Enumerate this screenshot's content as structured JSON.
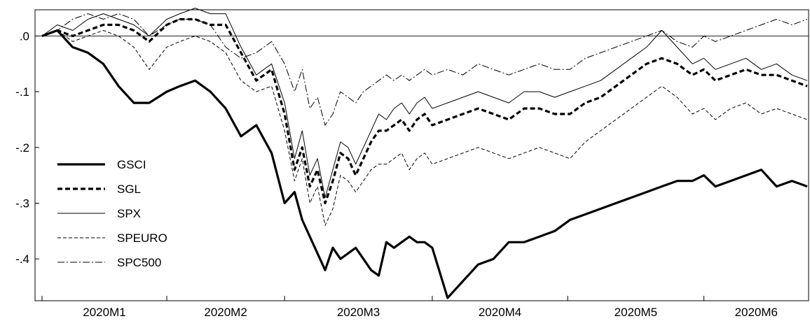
{
  "chart_data": {
    "type": "line",
    "title": "",
    "xlabel": "",
    "ylabel": "",
    "ylim": [
      -0.475,
      0.047
    ],
    "yticks": [
      {
        "value": 0.0,
        "label": ".0"
      },
      {
        "value": -0.1,
        "label": "-.1"
      },
      {
        "value": -0.2,
        "label": "-.2"
      },
      {
        "value": -0.3,
        "label": "-.3"
      },
      {
        "value": -0.4,
        "label": "-.4"
      }
    ],
    "xlim": [
      0,
      1
    ],
    "xticks": [
      {
        "value": 0.0,
        "label": "2020M1"
      },
      {
        "value": 0.163,
        "label": "2020M2"
      },
      {
        "value": 0.317,
        "label": "2020M3"
      },
      {
        "value": 0.51,
        "label": "2020M4"
      },
      {
        "value": 0.687,
        "label": "2020M5"
      },
      {
        "value": 0.865,
        "label": "2020M6"
      }
    ],
    "zero_line": true,
    "grid": false,
    "legend": "left-inside",
    "x": [
      0.0,
      0.02,
      0.04,
      0.06,
      0.08,
      0.1,
      0.12,
      0.14,
      0.163,
      0.18,
      0.2,
      0.22,
      0.24,
      0.26,
      0.28,
      0.3,
      0.317,
      0.33,
      0.34,
      0.35,
      0.36,
      0.37,
      0.38,
      0.39,
      0.4,
      0.41,
      0.42,
      0.43,
      0.44,
      0.45,
      0.46,
      0.47,
      0.48,
      0.49,
      0.5,
      0.51,
      0.53,
      0.55,
      0.57,
      0.59,
      0.61,
      0.63,
      0.65,
      0.67,
      0.69,
      0.71,
      0.73,
      0.75,
      0.77,
      0.79,
      0.81,
      0.83,
      0.85,
      0.865,
      0.88,
      0.9,
      0.92,
      0.94,
      0.96,
      0.98,
      1.0
    ],
    "series": [
      {
        "name": "GSCI",
        "values": [
          0.0,
          0.01,
          -0.02,
          -0.03,
          -0.05,
          -0.09,
          -0.12,
          -0.12,
          -0.1,
          -0.09,
          -0.08,
          -0.1,
          -0.13,
          -0.18,
          -0.16,
          -0.21,
          -0.3,
          -0.28,
          -0.33,
          -0.36,
          -0.39,
          -0.42,
          -0.38,
          -0.4,
          -0.39,
          -0.38,
          -0.4,
          -0.42,
          -0.43,
          -0.37,
          -0.38,
          -0.37,
          -0.36,
          -0.37,
          -0.37,
          -0.38,
          -0.47,
          -0.44,
          -0.41,
          -0.4,
          -0.37,
          -0.37,
          -0.36,
          -0.35,
          -0.33,
          -0.32,
          -0.31,
          -0.3,
          -0.29,
          -0.28,
          -0.27,
          -0.26,
          -0.26,
          -0.25,
          -0.27,
          -0.26,
          -0.25,
          -0.24,
          -0.27,
          -0.26,
          -0.27
        ]
      },
      {
        "name": "SGL",
        "values": [
          0.0,
          0.01,
          0.0,
          0.01,
          0.02,
          0.02,
          0.01,
          -0.01,
          0.02,
          0.03,
          0.03,
          0.02,
          0.02,
          -0.03,
          -0.08,
          -0.06,
          -0.14,
          -0.24,
          -0.2,
          -0.27,
          -0.24,
          -0.3,
          -0.26,
          -0.21,
          -0.22,
          -0.25,
          -0.22,
          -0.19,
          -0.17,
          -0.17,
          -0.16,
          -0.15,
          -0.17,
          -0.15,
          -0.14,
          -0.16,
          -0.15,
          -0.14,
          -0.13,
          -0.14,
          -0.15,
          -0.13,
          -0.13,
          -0.14,
          -0.14,
          -0.12,
          -0.11,
          -0.09,
          -0.07,
          -0.05,
          -0.04,
          -0.05,
          -0.07,
          -0.06,
          -0.08,
          -0.07,
          -0.06,
          -0.07,
          -0.07,
          -0.08,
          -0.09
        ]
      },
      {
        "name": "SPX",
        "values": [
          0.0,
          0.02,
          0.01,
          0.03,
          0.04,
          0.03,
          0.02,
          0.0,
          0.03,
          0.04,
          0.05,
          0.04,
          0.04,
          -0.02,
          -0.07,
          -0.05,
          -0.12,
          -0.22,
          -0.17,
          -0.25,
          -0.22,
          -0.29,
          -0.24,
          -0.19,
          -0.2,
          -0.23,
          -0.2,
          -0.17,
          -0.14,
          -0.15,
          -0.13,
          -0.12,
          -0.14,
          -0.12,
          -0.11,
          -0.13,
          -0.12,
          -0.11,
          -0.1,
          -0.11,
          -0.12,
          -0.1,
          -0.1,
          -0.11,
          -0.1,
          -0.09,
          -0.08,
          -0.06,
          -0.04,
          -0.02,
          0.01,
          -0.02,
          -0.05,
          -0.04,
          -0.06,
          -0.05,
          -0.04,
          -0.06,
          -0.05,
          -0.07,
          -0.08
        ]
      },
      {
        "name": "SPEURO",
        "values": [
          0.0,
          0.01,
          -0.01,
          0.0,
          0.01,
          0.0,
          -0.02,
          -0.06,
          -0.02,
          -0.01,
          0.0,
          -0.01,
          -0.03,
          -0.08,
          -0.1,
          -0.09,
          -0.17,
          -0.26,
          -0.22,
          -0.3,
          -0.27,
          -0.34,
          -0.31,
          -0.25,
          -0.26,
          -0.28,
          -0.26,
          -0.24,
          -0.23,
          -0.23,
          -0.22,
          -0.21,
          -0.24,
          -0.22,
          -0.21,
          -0.23,
          -0.22,
          -0.21,
          -0.2,
          -0.21,
          -0.22,
          -0.21,
          -0.2,
          -0.21,
          -0.22,
          -0.19,
          -0.17,
          -0.15,
          -0.13,
          -0.11,
          -0.09,
          -0.11,
          -0.14,
          -0.13,
          -0.15,
          -0.13,
          -0.12,
          -0.14,
          -0.13,
          -0.14,
          -0.15
        ]
      },
      {
        "name": "SPC500",
        "values": [
          0.0,
          0.01,
          0.03,
          0.04,
          0.03,
          0.04,
          0.03,
          0.0,
          0.02,
          0.03,
          0.03,
          0.02,
          -0.02,
          -0.04,
          -0.03,
          -0.01,
          -0.05,
          -0.1,
          -0.06,
          -0.13,
          -0.11,
          -0.16,
          -0.14,
          -0.1,
          -0.11,
          -0.12,
          -0.1,
          -0.09,
          -0.08,
          -0.07,
          -0.08,
          -0.07,
          -0.08,
          -0.07,
          -0.06,
          -0.07,
          -0.06,
          -0.07,
          -0.05,
          -0.06,
          -0.07,
          -0.06,
          -0.05,
          -0.06,
          -0.06,
          -0.04,
          -0.03,
          -0.02,
          -0.01,
          0.0,
          0.01,
          -0.01,
          -0.02,
          0.0,
          -0.01,
          0.0,
          0.01,
          0.02,
          0.03,
          0.02,
          0.03
        ]
      }
    ]
  },
  "styles": {
    "GSCI": {
      "color": "#000000",
      "dash": "",
      "width": 3.2
    },
    "SGL": {
      "color": "#000000",
      "dash": "7,4",
      "width": 3.2
    },
    "SPX": {
      "color": "#000000",
      "dash": "",
      "width": 1
    },
    "SPEURO": {
      "color": "#000000",
      "dash": "5,3",
      "width": 1
    },
    "SPC500": {
      "color": "#000000",
      "dash": "10,3,2,3",
      "width": 1
    }
  }
}
